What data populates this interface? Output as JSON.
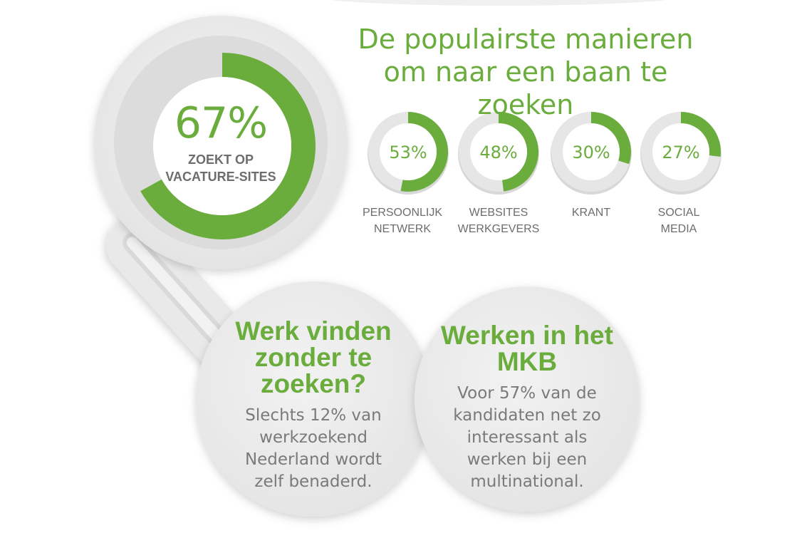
{
  "headline": "De populairste manieren om naar een baan te zoeken",
  "chart_data": {
    "type": "pie",
    "main": {
      "value": 67,
      "label": "67%",
      "caption": "ZOEKT OP VACATURE-SITES"
    },
    "categories": [
      "PERSOONLIJK NETWERK",
      "WEBSITES WERKGEVERS",
      "KRANT",
      "SOCIAL MEDIA"
    ],
    "values": [
      53,
      48,
      30,
      27
    ],
    "value_labels": [
      "53%",
      "48%",
      "30%",
      "27%"
    ],
    "color": "#6aad3d",
    "track_color": "#e6e6e6"
  },
  "bubbles": [
    {
      "title": "Werk vinden zonder te zoeken?",
      "body": "Slechts 12% van werkzoekend Nederland wordt zelf benaderd."
    },
    {
      "title": "Werken in het MKB",
      "body": "Voor 57% van de kandidaten net zo interessant als werken bij een multinational."
    }
  ]
}
